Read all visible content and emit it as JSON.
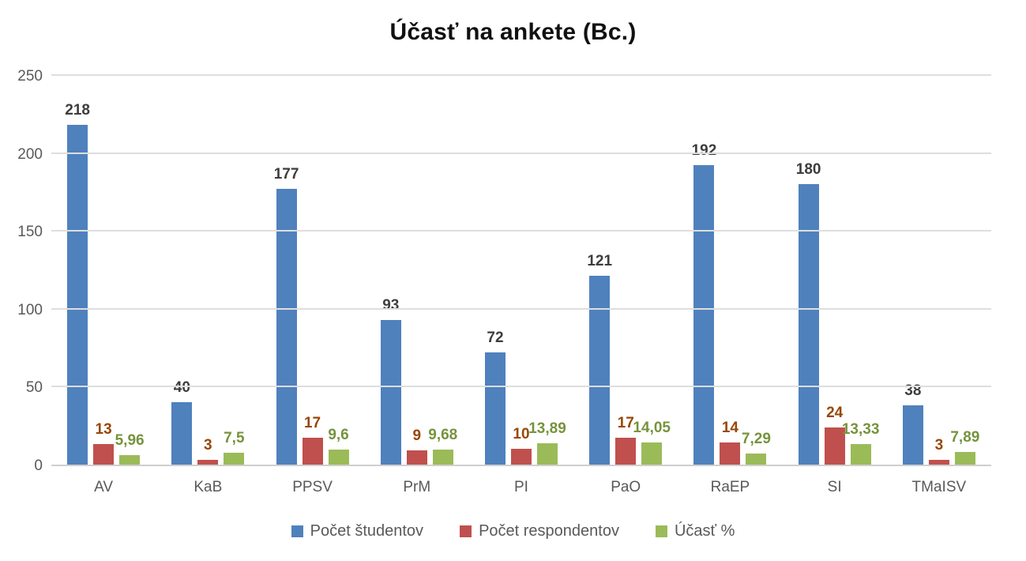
{
  "title": "Účasť na ankete (Bc.)",
  "colors": {
    "series_bars": [
      "#4F81BD",
      "#C0504D",
      "#9BBB59"
    ],
    "series_labels": [
      "#3D3D3D",
      "#974706",
      "#76933C"
    ],
    "gridline": "#DEDEDE",
    "axis_line": "#CFCFCF",
    "tick_text": "#595959",
    "title_text": "#111111"
  },
  "chart_data": {
    "type": "bar",
    "title": "Účasť na ankete (Bc.)",
    "categories": [
      "AV",
      "KaB",
      "PPSV",
      "PrM",
      "PI",
      "PaO",
      "RaEP",
      "SI",
      "TMaISV"
    ],
    "series": [
      {
        "name": "Počet študentov",
        "values": [
          218,
          40,
          177,
          93,
          72,
          121,
          192,
          180,
          38
        ],
        "labels": [
          "218",
          "40",
          "177",
          "93",
          "72",
          "121",
          "192",
          "180",
          "38"
        ]
      },
      {
        "name": "Počet respondentov",
        "values": [
          13,
          3,
          17,
          9,
          10,
          17,
          14,
          24,
          3
        ],
        "labels": [
          "13",
          "3",
          "17",
          "9",
          "10",
          "17",
          "14",
          "24",
          "3"
        ]
      },
      {
        "name": "Účasť %",
        "values": [
          5.96,
          7.5,
          9.6,
          9.68,
          13.89,
          14.05,
          7.29,
          13.33,
          7.89
        ],
        "labels": [
          "5,96",
          "7,5",
          "9,6",
          "9,68",
          "13,89",
          "14,05",
          "7,29",
          "13,33",
          "7,89"
        ]
      }
    ],
    "xlabel": "",
    "ylabel": "",
    "ylim": [
      0,
      250
    ],
    "yticks": [
      0,
      50,
      100,
      150,
      200,
      250
    ],
    "ytick_labels": [
      "0",
      "50",
      "100",
      "150",
      "200",
      "250"
    ],
    "grid": true,
    "legend_position": "bottom",
    "data_labels": true
  }
}
